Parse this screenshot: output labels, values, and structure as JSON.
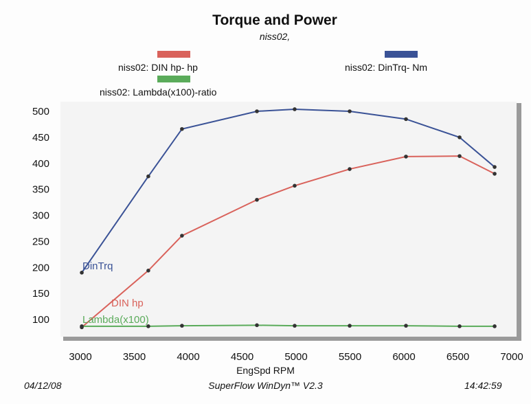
{
  "chart_data": {
    "type": "line",
    "title": "Torque and Power",
    "subtitle": "niss02,",
    "xlabel": "EngSpd  RPM",
    "ylabel": "",
    "xlim": [
      3000,
      7000
    ],
    "ylim": [
      75,
      510
    ],
    "xticks": [
      "3000",
      "3500",
      "4000",
      "4500",
      "5000",
      "5500",
      "6000",
      "6500",
      "7000"
    ],
    "yticks": [
      "100",
      "150",
      "200",
      "250",
      "300",
      "350",
      "400",
      "450",
      "500"
    ],
    "series": [
      {
        "name": "niss02: DinTrq-  Nm",
        "label": "DinTrq",
        "color": "#3a5296",
        "x": [
          3013,
          3630,
          3942,
          4637,
          4987,
          5497,
          6019,
          6516,
          6841
        ],
        "y": [
          190,
          375,
          466,
          500,
          504,
          500,
          485,
          450,
          393
        ]
      },
      {
        "name": "niss02: DIN hp-  hp",
        "label": "DIN hp",
        "color": "#d9625b",
        "x": [
          3013,
          3630,
          3942,
          4637,
          4987,
          5497,
          6019,
          6516,
          6841
        ],
        "y": [
          85,
          194,
          261,
          330,
          357,
          389,
          413,
          414,
          380
        ]
      },
      {
        "name": "niss02: Lambda(x100)-ratio",
        "label": "Lambda(x100)",
        "color": "#5aab5a",
        "x": [
          3013,
          3630,
          3942,
          4637,
          4987,
          5497,
          6019,
          6516,
          6841
        ],
        "y": [
          87,
          87,
          88,
          89,
          88,
          88,
          88,
          87,
          87
        ]
      }
    ],
    "grid": false,
    "legend": "top"
  },
  "footer": {
    "date": "04/12/08",
    "software": "SuperFlow WinDyn™ V2.3",
    "time": "14:42:59"
  }
}
